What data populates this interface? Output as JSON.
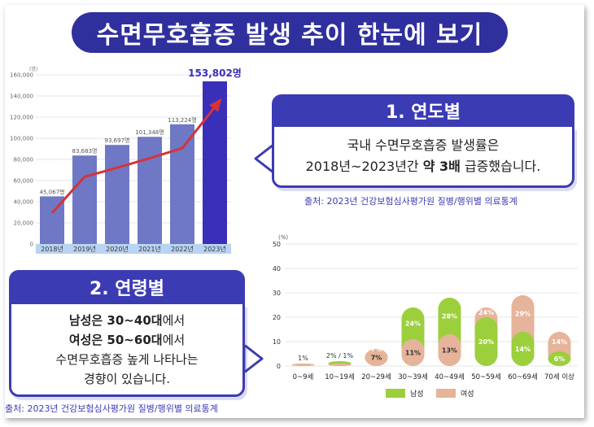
{
  "title": "수면무호흡증 발생 추이 한눈에 보기",
  "panel1": {
    "heading": "1. 연도별",
    "line1": "국내 수면무호흡증 발생률은",
    "line2_pre": "2018년~2023년간 ",
    "line2_bold": "약 3배",
    "line2_post": " 급증했습니다.",
    "source": "출처: 2023년 건강보험심사평가원 질병/행위별 의료통계"
  },
  "panel2": {
    "heading": "2. 연령별",
    "line1_bold": "남성은 30~40대",
    "line1_post": "에서",
    "line2_bold": "여성은 50~60대",
    "line2_post": "에서",
    "line3": "수면무호흡증 높게 나타나는",
    "line4": "경향이 있습니다.",
    "source": "출처: 2023년 건강보험심사평가원 질병/행위별 의료통계"
  },
  "colors": {
    "navy": "#2f2f9e",
    "bar": "#6f78c4",
    "bar_highlight": "#3a2fb8",
    "trend": "#d3343a",
    "male": "#9ccf3c",
    "female": "#e6b49a",
    "axis_band": "#b9d3f2"
  },
  "chart_data": [
    {
      "type": "bar",
      "categories": [
        "2018년",
        "2019년",
        "2020년",
        "2021년",
        "2022년",
        "2023년"
      ],
      "values": [
        45067,
        83683,
        93697,
        101348,
        113224,
        153802
      ],
      "value_labels": [
        "45,067명",
        "83,683명",
        "93,697명",
        "101,348명",
        "113,224명",
        "153,802명"
      ],
      "unit": "(명)",
      "ylim": [
        0,
        160000
      ],
      "yticks": [
        0,
        20000,
        40000,
        60000,
        80000,
        100000,
        120000,
        140000,
        160000
      ],
      "ytick_labels": [
        "0",
        "20,000",
        "40,000",
        "60,000",
        "80,000",
        "100,000",
        "120,000",
        "140,000",
        "160,000"
      ],
      "grid": true,
      "trend_arrow": true
    },
    {
      "type": "bar",
      "categories": [
        "0~9세",
        "10~19세",
        "20~29세",
        "30~39세",
        "40~49세",
        "50~59세",
        "60~69세",
        "70세 이상"
      ],
      "unit": "(%)",
      "ylim": [
        0,
        50
      ],
      "yticks": [
        0,
        10,
        20,
        30,
        40,
        50
      ],
      "grid": true,
      "legend_position": "bottom",
      "pair_labels": [
        "1%",
        "2% / 1%",
        "",
        "",
        "",
        "",
        "",
        ""
      ],
      "series": [
        {
          "name": "남성",
          "values": [
            1,
            2,
            7,
            24,
            28,
            20,
            14,
            6
          ],
          "labels": [
            "",
            "",
            "7%",
            "24%",
            "28%",
            "20%",
            "14%",
            "6%"
          ]
        },
        {
          "name": "여성",
          "values": [
            1,
            1,
            7,
            11,
            13,
            24,
            29,
            14
          ],
          "labels": [
            "",
            "",
            "7%",
            "11%",
            "13%",
            "24%",
            "29%",
            "14%"
          ]
        }
      ]
    }
  ]
}
